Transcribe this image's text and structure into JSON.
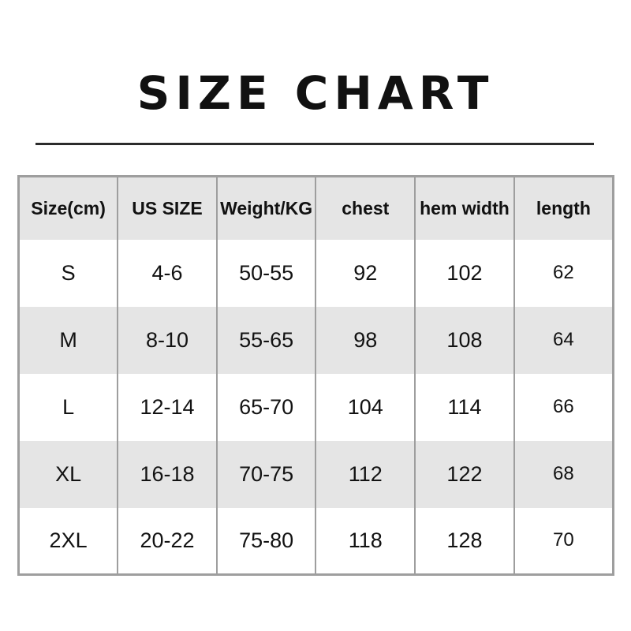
{
  "header": {
    "title": "SIZE CHART"
  },
  "colors": {
    "title_text": "#111111",
    "divider": "#2b2b2b",
    "table_border": "#9e9e9e",
    "header_row_bg": "#e5e5e5",
    "alt_row_bg": "#e5e5e5",
    "row_bg": "#ffffff",
    "cell_text": "#121212",
    "page_bg": "#ffffff"
  },
  "chart_data": {
    "type": "table",
    "title": "SIZE CHART",
    "columns": [
      "Size(cm)",
      "US SIZE",
      "Weight/KG",
      "chest",
      "hem width",
      "length"
    ],
    "rows": [
      [
        "S",
        "4-6",
        "50-55",
        "92",
        "102",
        "62"
      ],
      [
        "M",
        "8-10",
        "55-65",
        "98",
        "108",
        "64"
      ],
      [
        "L",
        "12-14",
        "65-70",
        "104",
        "114",
        "66"
      ],
      [
        "XL",
        "16-18",
        "70-75",
        "112",
        "122",
        "68"
      ],
      [
        "2XL",
        "20-22",
        "75-80",
        "118",
        "128",
        "70"
      ]
    ],
    "layout": {
      "columns_equal_width": true,
      "alternating_row_shading": true,
      "shaded_rows": [
        "header",
        "M",
        "XL"
      ],
      "inner_horizontal_borders": false,
      "inner_vertical_borders": true
    }
  }
}
